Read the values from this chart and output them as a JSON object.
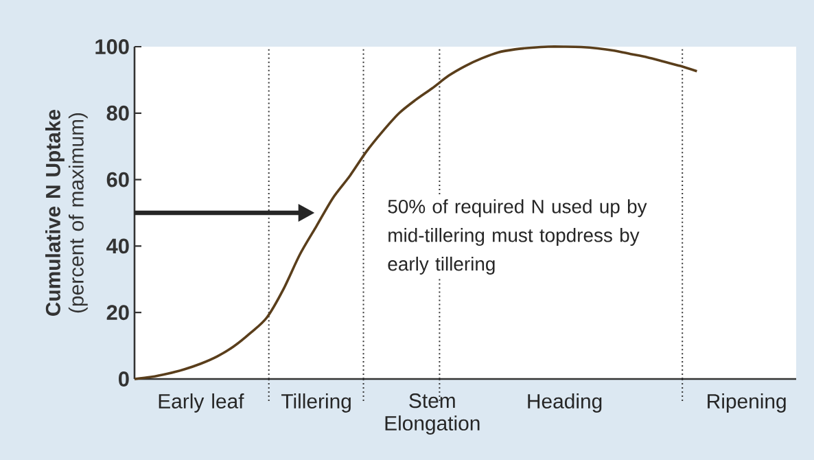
{
  "chart_data": {
    "type": "line",
    "ylabel": "**Cumulative N Uptake** (percent of maximum)",
    "categories": [
      null,
      null,
      null,
      null,
      "Early leaf",
      null,
      null,
      null,
      null,
      null,
      null,
      "Tillering",
      null,
      null,
      null,
      null,
      null,
      null,
      "Stem Elongation",
      null,
      null,
      null,
      null,
      null,
      null,
      null,
      "Heading",
      null,
      null,
      null,
      null,
      null,
      null,
      null,
      null,
      null,
      null,
      "Ripening",
      null,
      null,
      null
    ],
    "series": [
      {
        "color": "#5a3e1b",
        "values": [
          0,
          0.6,
          1.6,
          2.9,
          4.6,
          6.8,
          9.8,
          13.8,
          18.5,
          27,
          37.5,
          46,
          54.5,
          61,
          68.3,
          74.5,
          80,
          84,
          87.5,
          91.3,
          94.2,
          96.5,
          98.3,
          99.2,
          99.7,
          100,
          100,
          99.9,
          99.5,
          98.8,
          97.8,
          96.8,
          95.5,
          94.2,
          92.6,
          null,
          null,
          null,
          null,
          null,
          null
        ]
      }
    ],
    "ylim": [
      0,
      100
    ],
    "yticks": [
      0,
      20,
      40,
      60,
      80,
      100
    ],
    "annotations": [
      "50% of required N used up by mid-tillering must topdress by early tillering"
    ],
    "grid": false,
    "marker": "none",
    "line_style": "solid"
  }
}
